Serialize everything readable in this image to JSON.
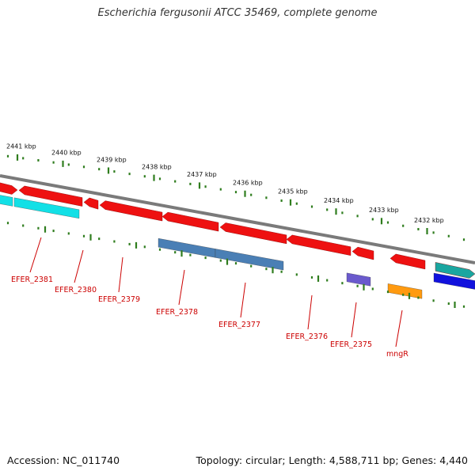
{
  "title": "Escherichia fergusonii ATCC 35469, complete genome",
  "footer": {
    "accession": "Accession: NC_011740",
    "summary": "Topology: circular; Length: 4,588,711 bp; Genes: 4,440"
  },
  "colors": {
    "backbone": "#7a7a7a",
    "tick": "#2f7d1e",
    "forward_gene": "#ee1111",
    "cyan_gene": "#12e0e6",
    "teal_gene": "#1aa6a0",
    "steelblue_gene": "#4a7fb5",
    "purple_gene": "#6a5acd",
    "blue_gene": "#1111dd",
    "orange_gene": "#ff9a10",
    "label": "#cc0000"
  },
  "kbp_labels": [
    "2441 kbp",
    "2440 kbp",
    "2439 kbp",
    "2438 kbp",
    "2437 kbp",
    "2436 kbp",
    "2435 kbp",
    "2434 kbp",
    "2433 kbp",
    "2432 kbp"
  ],
  "gene_labels": [
    "EFER_2381",
    "EFER_2380",
    "EFER_2379",
    "EFER_2378",
    "EFER_2377",
    "EFER_2376",
    "EFER_2375",
    "mngR"
  ]
}
